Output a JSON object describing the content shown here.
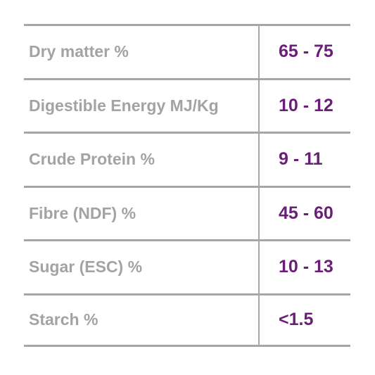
{
  "table": {
    "rows": [
      {
        "label": "Dry matter %",
        "value": "65 - 75"
      },
      {
        "label": "Digestible Energy MJ/Kg",
        "value": "10 - 12"
      },
      {
        "label": "Crude Protein %",
        "value": "9 - 11"
      },
      {
        "label": "Fibre (NDF) %",
        "value": "45 - 60"
      },
      {
        "label": "Sugar (ESC) %",
        "value": "10 - 13"
      },
      {
        "label": "Starch %",
        "value": "˂1.5"
      }
    ]
  },
  "colors": {
    "label_text": "#a3a3a3",
    "value_text": "#6b1e77",
    "rule": "#a6a6a6",
    "background": "#ffffff"
  }
}
